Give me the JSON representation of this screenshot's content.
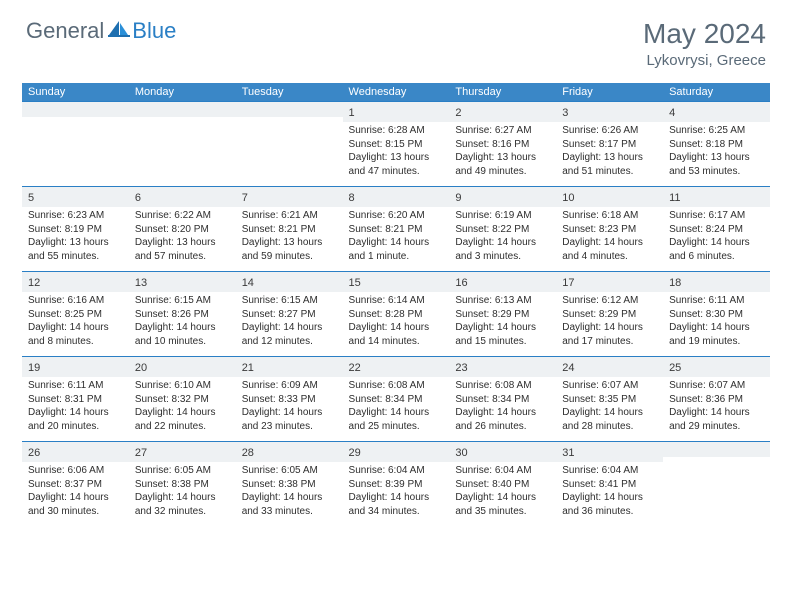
{
  "brand": {
    "part1": "General",
    "part2": "Blue"
  },
  "title": "May 2024",
  "location": "Lykovrysi, Greece",
  "colors": {
    "header_bg": "#3a87c7",
    "header_text": "#ffffff",
    "daybar_bg": "#eef1f3",
    "daybar_border": "#2a7fc5",
    "text": "#2e2e2e",
    "title_text": "#5a6a78"
  },
  "day_headers": [
    "Sunday",
    "Monday",
    "Tuesday",
    "Wednesday",
    "Thursday",
    "Friday",
    "Saturday"
  ],
  "weeks": [
    [
      null,
      null,
      null,
      {
        "n": "1",
        "sr": "Sunrise: 6:28 AM",
        "ss": "Sunset: 8:15 PM",
        "dl": "Daylight: 13 hours and 47 minutes."
      },
      {
        "n": "2",
        "sr": "Sunrise: 6:27 AM",
        "ss": "Sunset: 8:16 PM",
        "dl": "Daylight: 13 hours and 49 minutes."
      },
      {
        "n": "3",
        "sr": "Sunrise: 6:26 AM",
        "ss": "Sunset: 8:17 PM",
        "dl": "Daylight: 13 hours and 51 minutes."
      },
      {
        "n": "4",
        "sr": "Sunrise: 6:25 AM",
        "ss": "Sunset: 8:18 PM",
        "dl": "Daylight: 13 hours and 53 minutes."
      }
    ],
    [
      {
        "n": "5",
        "sr": "Sunrise: 6:23 AM",
        "ss": "Sunset: 8:19 PM",
        "dl": "Daylight: 13 hours and 55 minutes."
      },
      {
        "n": "6",
        "sr": "Sunrise: 6:22 AM",
        "ss": "Sunset: 8:20 PM",
        "dl": "Daylight: 13 hours and 57 minutes."
      },
      {
        "n": "7",
        "sr": "Sunrise: 6:21 AM",
        "ss": "Sunset: 8:21 PM",
        "dl": "Daylight: 13 hours and 59 minutes."
      },
      {
        "n": "8",
        "sr": "Sunrise: 6:20 AM",
        "ss": "Sunset: 8:21 PM",
        "dl": "Daylight: 14 hours and 1 minute."
      },
      {
        "n": "9",
        "sr": "Sunrise: 6:19 AM",
        "ss": "Sunset: 8:22 PM",
        "dl": "Daylight: 14 hours and 3 minutes."
      },
      {
        "n": "10",
        "sr": "Sunrise: 6:18 AM",
        "ss": "Sunset: 8:23 PM",
        "dl": "Daylight: 14 hours and 4 minutes."
      },
      {
        "n": "11",
        "sr": "Sunrise: 6:17 AM",
        "ss": "Sunset: 8:24 PM",
        "dl": "Daylight: 14 hours and 6 minutes."
      }
    ],
    [
      {
        "n": "12",
        "sr": "Sunrise: 6:16 AM",
        "ss": "Sunset: 8:25 PM",
        "dl": "Daylight: 14 hours and 8 minutes."
      },
      {
        "n": "13",
        "sr": "Sunrise: 6:15 AM",
        "ss": "Sunset: 8:26 PM",
        "dl": "Daylight: 14 hours and 10 minutes."
      },
      {
        "n": "14",
        "sr": "Sunrise: 6:15 AM",
        "ss": "Sunset: 8:27 PM",
        "dl": "Daylight: 14 hours and 12 minutes."
      },
      {
        "n": "15",
        "sr": "Sunrise: 6:14 AM",
        "ss": "Sunset: 8:28 PM",
        "dl": "Daylight: 14 hours and 14 minutes."
      },
      {
        "n": "16",
        "sr": "Sunrise: 6:13 AM",
        "ss": "Sunset: 8:29 PM",
        "dl": "Daylight: 14 hours and 15 minutes."
      },
      {
        "n": "17",
        "sr": "Sunrise: 6:12 AM",
        "ss": "Sunset: 8:29 PM",
        "dl": "Daylight: 14 hours and 17 minutes."
      },
      {
        "n": "18",
        "sr": "Sunrise: 6:11 AM",
        "ss": "Sunset: 8:30 PM",
        "dl": "Daylight: 14 hours and 19 minutes."
      }
    ],
    [
      {
        "n": "19",
        "sr": "Sunrise: 6:11 AM",
        "ss": "Sunset: 8:31 PM",
        "dl": "Daylight: 14 hours and 20 minutes."
      },
      {
        "n": "20",
        "sr": "Sunrise: 6:10 AM",
        "ss": "Sunset: 8:32 PM",
        "dl": "Daylight: 14 hours and 22 minutes."
      },
      {
        "n": "21",
        "sr": "Sunrise: 6:09 AM",
        "ss": "Sunset: 8:33 PM",
        "dl": "Daylight: 14 hours and 23 minutes."
      },
      {
        "n": "22",
        "sr": "Sunrise: 6:08 AM",
        "ss": "Sunset: 8:34 PM",
        "dl": "Daylight: 14 hours and 25 minutes."
      },
      {
        "n": "23",
        "sr": "Sunrise: 6:08 AM",
        "ss": "Sunset: 8:34 PM",
        "dl": "Daylight: 14 hours and 26 minutes."
      },
      {
        "n": "24",
        "sr": "Sunrise: 6:07 AM",
        "ss": "Sunset: 8:35 PM",
        "dl": "Daylight: 14 hours and 28 minutes."
      },
      {
        "n": "25",
        "sr": "Sunrise: 6:07 AM",
        "ss": "Sunset: 8:36 PM",
        "dl": "Daylight: 14 hours and 29 minutes."
      }
    ],
    [
      {
        "n": "26",
        "sr": "Sunrise: 6:06 AM",
        "ss": "Sunset: 8:37 PM",
        "dl": "Daylight: 14 hours and 30 minutes."
      },
      {
        "n": "27",
        "sr": "Sunrise: 6:05 AM",
        "ss": "Sunset: 8:38 PM",
        "dl": "Daylight: 14 hours and 32 minutes."
      },
      {
        "n": "28",
        "sr": "Sunrise: 6:05 AM",
        "ss": "Sunset: 8:38 PM",
        "dl": "Daylight: 14 hours and 33 minutes."
      },
      {
        "n": "29",
        "sr": "Sunrise: 6:04 AM",
        "ss": "Sunset: 8:39 PM",
        "dl": "Daylight: 14 hours and 34 minutes."
      },
      {
        "n": "30",
        "sr": "Sunrise: 6:04 AM",
        "ss": "Sunset: 8:40 PM",
        "dl": "Daylight: 14 hours and 35 minutes."
      },
      {
        "n": "31",
        "sr": "Sunrise: 6:04 AM",
        "ss": "Sunset: 8:41 PM",
        "dl": "Daylight: 14 hours and 36 minutes."
      },
      null
    ]
  ]
}
